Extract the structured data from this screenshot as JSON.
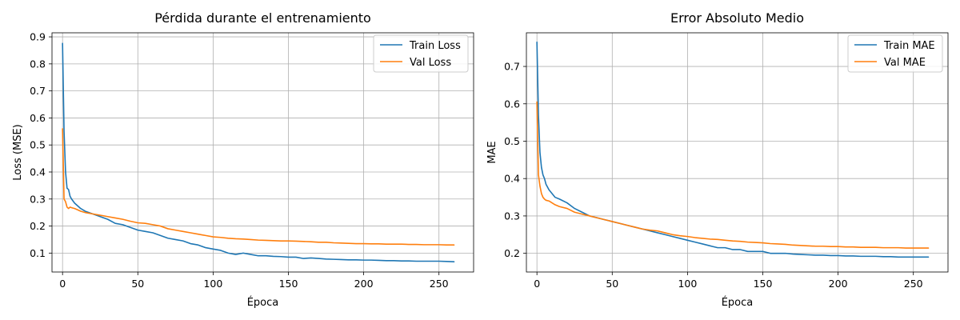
{
  "chart_data": [
    {
      "type": "line",
      "title": "Pérdida durante el entrenamiento",
      "xlabel": "Época",
      "ylabel": "Loss (MSE)",
      "xlim": [
        -7,
        273
      ],
      "ylim": [
        0.03,
        0.915
      ],
      "xticks": [
        0,
        50,
        100,
        150,
        200,
        250
      ],
      "yticks": [
        0.1,
        0.2,
        0.3,
        0.4,
        0.5,
        0.6,
        0.7,
        0.8,
        0.9
      ],
      "ytick_labels": [
        "0.1",
        "0.2",
        "0.3",
        "0.4",
        "0.5",
        "0.6",
        "0.7",
        "0.8",
        "0.9"
      ],
      "grid": true,
      "legend": "top-right",
      "series": [
        {
          "name": "Train Loss",
          "color": "#1f77b4",
          "x": [
            0,
            1,
            2,
            3,
            4,
            5,
            6,
            8,
            10,
            12,
            15,
            20,
            25,
            30,
            35,
            40,
            45,
            50,
            55,
            60,
            65,
            70,
            75,
            80,
            85,
            90,
            95,
            100,
            105,
            110,
            115,
            120,
            125,
            130,
            135,
            140,
            145,
            150,
            155,
            160,
            165,
            170,
            175,
            180,
            185,
            190,
            195,
            200,
            205,
            210,
            215,
            220,
            225,
            230,
            235,
            240,
            245,
            250,
            255,
            260
          ],
          "values": [
            0.876,
            0.55,
            0.4,
            0.34,
            0.335,
            0.31,
            0.3,
            0.285,
            0.275,
            0.265,
            0.255,
            0.245,
            0.235,
            0.225,
            0.21,
            0.205,
            0.195,
            0.185,
            0.18,
            0.175,
            0.165,
            0.155,
            0.15,
            0.145,
            0.135,
            0.13,
            0.12,
            0.115,
            0.11,
            0.1,
            0.095,
            0.1,
            0.095,
            0.09,
            0.09,
            0.088,
            0.087,
            0.085,
            0.085,
            0.08,
            0.082,
            0.08,
            0.078,
            0.077,
            0.076,
            0.075,
            0.075,
            0.074,
            0.074,
            0.073,
            0.072,
            0.072,
            0.071,
            0.071,
            0.07,
            0.07,
            0.07,
            0.07,
            0.069,
            0.068
          ]
        },
        {
          "name": "Val Loss",
          "color": "#ff7f0e",
          "x": [
            0,
            1,
            2,
            3,
            4,
            5,
            6,
            8,
            10,
            12,
            15,
            20,
            25,
            30,
            35,
            40,
            45,
            50,
            55,
            60,
            65,
            70,
            75,
            80,
            85,
            90,
            95,
            100,
            105,
            110,
            115,
            120,
            125,
            130,
            135,
            140,
            145,
            150,
            155,
            160,
            165,
            170,
            175,
            180,
            185,
            190,
            195,
            200,
            205,
            210,
            215,
            220,
            225,
            230,
            235,
            240,
            245,
            250,
            255,
            260
          ],
          "values": [
            0.56,
            0.3,
            0.29,
            0.27,
            0.265,
            0.27,
            0.268,
            0.265,
            0.26,
            0.255,
            0.25,
            0.245,
            0.24,
            0.235,
            0.23,
            0.225,
            0.218,
            0.212,
            0.21,
            0.205,
            0.2,
            0.19,
            0.185,
            0.18,
            0.175,
            0.17,
            0.165,
            0.16,
            0.158,
            0.155,
            0.153,
            0.152,
            0.15,
            0.148,
            0.147,
            0.146,
            0.145,
            0.145,
            0.144,
            0.143,
            0.142,
            0.14,
            0.14,
            0.138,
            0.137,
            0.136,
            0.135,
            0.135,
            0.134,
            0.134,
            0.133,
            0.133,
            0.133,
            0.132,
            0.132,
            0.131,
            0.131,
            0.131,
            0.13,
            0.13
          ]
        }
      ]
    },
    {
      "type": "line",
      "title": "Error Absoluto Medio",
      "xlabel": "Época",
      "ylabel": "MAE",
      "xlim": [
        -7,
        273
      ],
      "ylim": [
        0.15,
        0.79
      ],
      "xticks": [
        0,
        50,
        100,
        150,
        200,
        250
      ],
      "yticks": [
        0.2,
        0.3,
        0.4,
        0.5,
        0.6,
        0.7
      ],
      "ytick_labels": [
        "0.2",
        "0.3",
        "0.4",
        "0.5",
        "0.6",
        "0.7"
      ],
      "grid": true,
      "legend": "top-right",
      "series": [
        {
          "name": "Train MAE",
          "color": "#1f77b4",
          "x": [
            0,
            1,
            2,
            3,
            4,
            5,
            6,
            8,
            10,
            12,
            15,
            20,
            25,
            30,
            35,
            40,
            45,
            50,
            55,
            60,
            65,
            70,
            75,
            80,
            85,
            90,
            95,
            100,
            105,
            110,
            115,
            120,
            125,
            130,
            135,
            140,
            145,
            150,
            155,
            160,
            165,
            170,
            175,
            180,
            185,
            190,
            195,
            200,
            205,
            210,
            215,
            220,
            225,
            230,
            235,
            240,
            245,
            250,
            255,
            260
          ],
          "values": [
            0.765,
            0.57,
            0.47,
            0.43,
            0.41,
            0.4,
            0.385,
            0.37,
            0.36,
            0.35,
            0.345,
            0.335,
            0.32,
            0.31,
            0.3,
            0.295,
            0.29,
            0.285,
            0.28,
            0.275,
            0.27,
            0.265,
            0.26,
            0.255,
            0.25,
            0.245,
            0.24,
            0.235,
            0.23,
            0.225,
            0.22,
            0.215,
            0.215,
            0.21,
            0.21,
            0.205,
            0.205,
            0.205,
            0.2,
            0.2,
            0.2,
            0.198,
            0.197,
            0.196,
            0.195,
            0.195,
            0.194,
            0.194,
            0.193,
            0.193,
            0.192,
            0.192,
            0.192,
            0.191,
            0.191,
            0.19,
            0.19,
            0.19,
            0.19,
            0.19
          ]
        },
        {
          "name": "Val MAE",
          "color": "#ff7f0e",
          "x": [
            0,
            1,
            2,
            3,
            4,
            5,
            6,
            8,
            10,
            12,
            15,
            20,
            25,
            30,
            35,
            40,
            45,
            50,
            55,
            60,
            65,
            70,
            75,
            80,
            85,
            90,
            95,
            100,
            105,
            110,
            115,
            120,
            125,
            130,
            135,
            140,
            145,
            150,
            155,
            160,
            165,
            170,
            175,
            180,
            185,
            190,
            195,
            200,
            205,
            210,
            215,
            220,
            225,
            230,
            235,
            240,
            245,
            250,
            255,
            260
          ],
          "values": [
            0.605,
            0.41,
            0.38,
            0.36,
            0.35,
            0.345,
            0.342,
            0.34,
            0.335,
            0.33,
            0.325,
            0.32,
            0.31,
            0.305,
            0.3,
            0.295,
            0.29,
            0.285,
            0.28,
            0.275,
            0.27,
            0.265,
            0.262,
            0.26,
            0.255,
            0.25,
            0.247,
            0.245,
            0.242,
            0.24,
            0.238,
            0.237,
            0.235,
            0.233,
            0.232,
            0.23,
            0.229,
            0.228,
            0.226,
            0.225,
            0.224,
            0.222,
            0.221,
            0.22,
            0.219,
            0.219,
            0.218,
            0.218,
            0.217,
            0.217,
            0.216,
            0.216,
            0.216,
            0.215,
            0.215,
            0.215,
            0.214,
            0.214,
            0.214,
            0.214
          ]
        }
      ]
    }
  ]
}
